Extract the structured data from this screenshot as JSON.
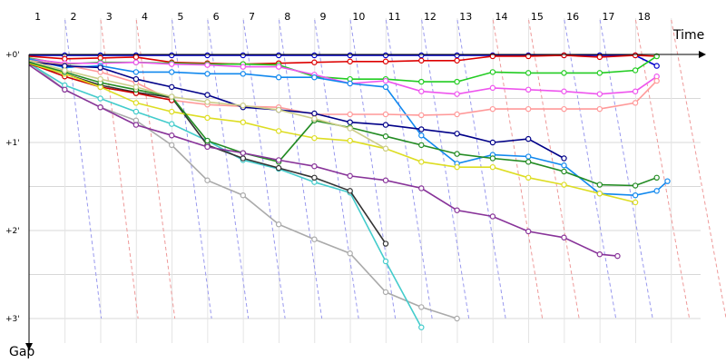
{
  "chart_data": {
    "type": "line",
    "title": "",
    "xlabel": "Time",
    "ylabel": "Gap",
    "lap_labels": [
      "1",
      "2",
      "3",
      "4",
      "5",
      "6",
      "7",
      "8",
      "9",
      "10",
      "11",
      "12",
      "13",
      "14",
      "15",
      "16",
      "17",
      "18"
    ],
    "gap_labels": [
      "+0'",
      "+1'",
      "+2'",
      "+3'"
    ],
    "gap_range_minutes": [
      0,
      3
    ],
    "grid": true,
    "series": [
      {
        "color": "#0000cc",
        "points": [
          [
            0,
            0.01
          ],
          [
            1,
            0.01
          ],
          [
            2,
            0.01
          ],
          [
            3,
            0.01
          ],
          [
            4,
            0.01
          ],
          [
            5,
            0.01
          ],
          [
            6,
            0.01
          ],
          [
            7,
            0.01
          ],
          [
            8,
            0.01
          ],
          [
            9,
            0.01
          ],
          [
            10,
            0.01
          ],
          [
            11,
            0.01
          ],
          [
            12,
            0.01
          ],
          [
            13,
            0.01
          ],
          [
            14,
            0.01
          ],
          [
            15,
            0.01
          ],
          [
            16,
            0.01
          ],
          [
            17,
            0.01
          ],
          [
            17.6,
            0.13
          ]
        ]
      },
      {
        "color": "#dd0000",
        "points": [
          [
            0,
            0.02
          ],
          [
            1,
            0.05
          ],
          [
            2,
            0.04
          ],
          [
            3,
            0.03
          ],
          [
            4,
            0.09
          ],
          [
            5,
            0.1
          ],
          [
            6,
            0.11
          ],
          [
            7,
            0.1
          ],
          [
            8,
            0.09
          ],
          [
            9,
            0.08
          ],
          [
            10,
            0.08
          ],
          [
            11,
            0.07
          ],
          [
            12,
            0.07
          ],
          [
            13,
            0.02
          ],
          [
            14,
            0.02
          ],
          [
            15,
            0.01
          ],
          [
            16,
            0.03
          ],
          [
            17,
            0.01
          ],
          [
            17.6,
            0.02
          ]
        ]
      },
      {
        "color": "#22cc22",
        "points": [
          [
            0,
            0.04
          ],
          [
            1,
            0.11
          ],
          [
            2,
            0.09
          ],
          [
            3,
            0.09
          ],
          [
            4,
            0.1
          ],
          [
            5,
            0.11
          ],
          [
            6,
            0.11
          ],
          [
            7,
            0.12
          ],
          [
            8,
            0.25
          ],
          [
            9,
            0.28
          ],
          [
            10,
            0.28
          ],
          [
            11,
            0.31
          ],
          [
            12,
            0.31
          ],
          [
            13,
            0.2
          ],
          [
            14,
            0.21
          ],
          [
            15,
            0.21
          ],
          [
            16,
            0.21
          ],
          [
            17,
            0.18
          ],
          [
            17.6,
            0.02
          ]
        ]
      },
      {
        "color": "#ee55ee",
        "points": [
          [
            0,
            0.05
          ],
          [
            1,
            0.1
          ],
          [
            2,
            0.1
          ],
          [
            3,
            0.09
          ],
          [
            4,
            0.11
          ],
          [
            5,
            0.12
          ],
          [
            6,
            0.14
          ],
          [
            7,
            0.14
          ],
          [
            8,
            0.23
          ],
          [
            9,
            0.33
          ],
          [
            10,
            0.3
          ],
          [
            11,
            0.42
          ],
          [
            12,
            0.45
          ],
          [
            13,
            0.38
          ],
          [
            14,
            0.4
          ],
          [
            15,
            0.42
          ],
          [
            16,
            0.45
          ],
          [
            17,
            0.42
          ],
          [
            17.6,
            0.25
          ]
        ]
      },
      {
        "color": "#1188ee",
        "points": [
          [
            0,
            0.05
          ],
          [
            1,
            0.15
          ],
          [
            2,
            0.13
          ],
          [
            3,
            0.2
          ],
          [
            4,
            0.2
          ],
          [
            5,
            0.22
          ],
          [
            6,
            0.22
          ],
          [
            7,
            0.26
          ],
          [
            8,
            0.26
          ],
          [
            9,
            0.33
          ],
          [
            10,
            0.37
          ],
          [
            11,
            0.92
          ],
          [
            12,
            1.24
          ],
          [
            13,
            1.14
          ],
          [
            14,
            1.16
          ],
          [
            15,
            1.26
          ],
          [
            16,
            1.58
          ],
          [
            17,
            1.6
          ],
          [
            17.6,
            1.55
          ],
          [
            17.9,
            1.44
          ]
        ]
      },
      {
        "color": "#ff9999",
        "points": [
          [
            0,
            0.07
          ],
          [
            1,
            0.12
          ],
          [
            2,
            0.2
          ],
          [
            3,
            0.32
          ],
          [
            4,
            0.52
          ],
          [
            5,
            0.57
          ],
          [
            6,
            0.59
          ],
          [
            7,
            0.6
          ],
          [
            8,
            0.68
          ],
          [
            9,
            0.68
          ],
          [
            10,
            0.68
          ],
          [
            11,
            0.69
          ],
          [
            12,
            0.68
          ],
          [
            13,
            0.62
          ],
          [
            14,
            0.62
          ],
          [
            15,
            0.62
          ],
          [
            16,
            0.62
          ],
          [
            17,
            0.55
          ],
          [
            17.6,
            0.3
          ]
        ]
      },
      {
        "color": "#000088",
        "points": [
          [
            0,
            0.08
          ],
          [
            1,
            0.13
          ],
          [
            2,
            0.15
          ],
          [
            3,
            0.28
          ],
          [
            4,
            0.37
          ],
          [
            5,
            0.46
          ],
          [
            6,
            0.6
          ],
          [
            7,
            0.63
          ],
          [
            8,
            0.67
          ],
          [
            9,
            0.77
          ],
          [
            10,
            0.8
          ],
          [
            11,
            0.85
          ],
          [
            12,
            0.9
          ],
          [
            13,
            1.0
          ],
          [
            14,
            0.96
          ],
          [
            15,
            1.18
          ]
        ]
      },
      {
        "color": "#aaaaaa",
        "points": [
          [
            0,
            0.09
          ],
          [
            1,
            0.4
          ],
          [
            2,
            0.6
          ],
          [
            3,
            0.75
          ],
          [
            4,
            1.03
          ],
          [
            5,
            1.43
          ],
          [
            6,
            1.6
          ],
          [
            7,
            1.93
          ],
          [
            8,
            2.1
          ],
          [
            9,
            2.26
          ],
          [
            10,
            2.7
          ],
          [
            11,
            2.87
          ],
          [
            12,
            3.0
          ]
        ]
      },
      {
        "color": "#44cccc",
        "points": [
          [
            0,
            0.1
          ],
          [
            1,
            0.35
          ],
          [
            2,
            0.5
          ],
          [
            3,
            0.65
          ],
          [
            4,
            0.79
          ],
          [
            5,
            0.98
          ],
          [
            6,
            1.2
          ],
          [
            7,
            1.3
          ],
          [
            8,
            1.45
          ],
          [
            9,
            1.57
          ],
          [
            10,
            2.35
          ],
          [
            11,
            3.1
          ]
        ]
      },
      {
        "color": "#333333",
        "points": [
          [
            0,
            0.11
          ],
          [
            1,
            0.22
          ],
          [
            2,
            0.35
          ],
          [
            3,
            0.43
          ],
          [
            4,
            0.49
          ],
          [
            5,
            1.03
          ],
          [
            6,
            1.18
          ],
          [
            7,
            1.29
          ],
          [
            8,
            1.4
          ],
          [
            9,
            1.55
          ],
          [
            10,
            2.15
          ]
        ]
      },
      {
        "color": "#cc0000",
        "points": [
          [
            0,
            0.1
          ],
          [
            1,
            0.25
          ],
          [
            2,
            0.37
          ],
          [
            3,
            0.44
          ],
          [
            4,
            0.52
          ]
        ]
      },
      {
        "color": "#dddd22",
        "points": [
          [
            0,
            0.1
          ],
          [
            1,
            0.22
          ],
          [
            2,
            0.37
          ],
          [
            3,
            0.55
          ],
          [
            4,
            0.65
          ],
          [
            5,
            0.72
          ],
          [
            6,
            0.77
          ],
          [
            7,
            0.87
          ],
          [
            8,
            0.95
          ],
          [
            9,
            0.98
          ],
          [
            10,
            1.07
          ],
          [
            11,
            1.22
          ],
          [
            12,
            1.28
          ],
          [
            13,
            1.28
          ],
          [
            14,
            1.4
          ],
          [
            15,
            1.48
          ],
          [
            16,
            1.58
          ],
          [
            17,
            1.68
          ]
        ]
      },
      {
        "color": "#228B22",
        "points": [
          [
            0,
            0.09
          ],
          [
            1,
            0.2
          ],
          [
            2,
            0.32
          ],
          [
            3,
            0.4
          ],
          [
            4,
            0.48
          ],
          [
            5,
            0.98
          ],
          [
            6,
            1.12
          ],
          [
            7,
            1.22
          ],
          [
            8,
            0.75
          ],
          [
            9,
            0.83
          ],
          [
            10,
            0.93
          ],
          [
            11,
            1.03
          ],
          [
            12,
            1.13
          ],
          [
            13,
            1.18
          ],
          [
            14,
            1.22
          ],
          [
            15,
            1.33
          ],
          [
            16,
            1.48
          ],
          [
            17,
            1.49
          ],
          [
            17.6,
            1.4
          ]
        ]
      },
      {
        "color": "#883399",
        "points": [
          [
            0,
            0.12
          ],
          [
            1,
            0.4
          ],
          [
            2,
            0.6
          ],
          [
            3,
            0.8
          ],
          [
            4,
            0.92
          ],
          [
            5,
            1.05
          ],
          [
            6,
            1.12
          ],
          [
            7,
            1.2
          ],
          [
            8,
            1.27
          ],
          [
            9,
            1.38
          ],
          [
            10,
            1.43
          ],
          [
            11,
            1.52
          ],
          [
            12,
            1.77
          ],
          [
            13,
            1.84
          ],
          [
            14,
            2.01
          ],
          [
            15,
            2.08
          ],
          [
            16,
            2.27
          ],
          [
            16.5,
            2.29
          ]
        ]
      },
      {
        "color": "#cccc88",
        "points": [
          [
            0,
            0.07
          ],
          [
            1,
            0.18
          ],
          [
            2,
            0.28
          ],
          [
            3,
            0.37
          ],
          [
            4,
            0.48
          ],
          [
            5,
            0.54
          ],
          [
            6,
            0.58
          ],
          [
            7,
            0.63
          ],
          [
            8,
            0.73
          ],
          [
            9,
            0.84
          ],
          [
            10,
            1.07
          ]
        ]
      }
    ],
    "connectors": [
      {
        "color": "#9999ee",
        "lap_index": 0
      },
      {
        "color": "#ee9999",
        "lap_index": 1
      },
      {
        "color": "#ee9999",
        "lap_index": 2
      },
      {
        "color": "#9999ee",
        "lap_index": 3
      },
      {
        "color": "#9999ee",
        "lap_index": 4
      },
      {
        "color": "#9999ee",
        "lap_index": 5
      },
      {
        "color": "#9999ee",
        "lap_index": 6
      },
      {
        "color": "#9999ee",
        "lap_index": 7
      },
      {
        "color": "#9999ee",
        "lap_index": 8
      },
      {
        "color": "#9999ee",
        "lap_index": 9
      },
      {
        "color": "#9999ee",
        "lap_index": 10
      },
      {
        "color": "#9999ee",
        "lap_index": 11
      },
      {
        "color": "#ee9999",
        "lap_index": 12
      },
      {
        "color": "#ee9999",
        "lap_index": 13
      },
      {
        "color": "#9999ee",
        "lap_index": 14
      },
      {
        "color": "#9999ee",
        "lap_index": 15
      },
      {
        "color": "#ee9999",
        "lap_index": 16
      },
      {
        "color": "#ee9999",
        "lap_index": 17
      }
    ]
  }
}
